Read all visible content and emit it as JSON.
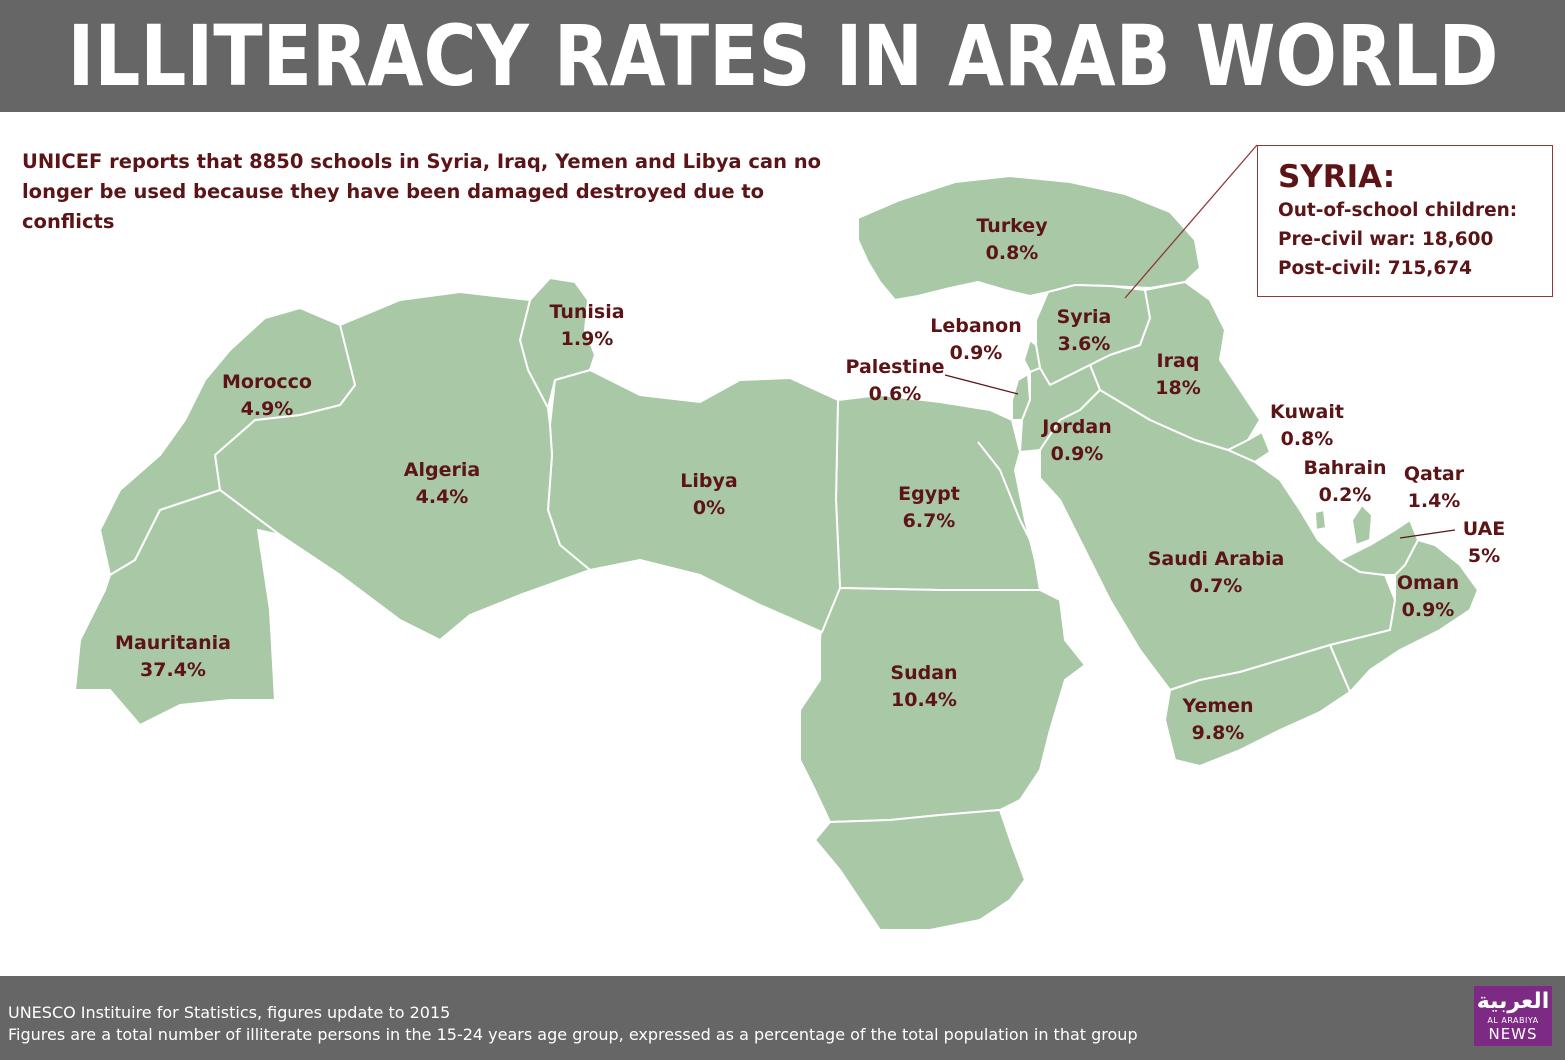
{
  "header": {
    "title": "ILLITERACY RATES IN ARAB WORLD"
  },
  "intro": {
    "text": "UNICEF reports that 8850 schools in Syria, Iraq, Yemen and Libya can no longer be used because they have been damaged destroyed due to conflicts"
  },
  "colors": {
    "land": "#a8c8a6",
    "border": "#ffffff",
    "label": "#5c1416",
    "bar": "#666666",
    "box_border": "#8a3a3a",
    "logo": "#7d2a84"
  },
  "countries": {
    "turkey": {
      "name": "Turkey",
      "rate": "0.8%"
    },
    "tunisia": {
      "name": "Tunisia",
      "rate": "1.9%"
    },
    "lebanon": {
      "name": "Lebanon",
      "rate": "0.9%"
    },
    "syria": {
      "name": "Syria",
      "rate": "3.6%"
    },
    "morocco": {
      "name": "Morocco",
      "rate": "4.9%"
    },
    "palestine": {
      "name": "Palestine",
      "rate": "0.6%"
    },
    "iraq": {
      "name": "Iraq",
      "rate": "18%"
    },
    "kuwait": {
      "name": "Kuwait",
      "rate": "0.8%"
    },
    "jordan": {
      "name": "Jordan",
      "rate": "0.9%"
    },
    "algeria": {
      "name": "Algeria",
      "rate": "4.4%"
    },
    "libya": {
      "name": "Libya",
      "rate": "0%"
    },
    "bahrain": {
      "name": "Bahrain",
      "rate": "0.2%"
    },
    "qatar": {
      "name": "Qatar",
      "rate": "1.4%"
    },
    "egypt": {
      "name": "Egypt",
      "rate": "6.7%"
    },
    "uae": {
      "name": "UAE",
      "rate": "5%"
    },
    "saudi": {
      "name": "Saudi Arabia",
      "rate": "0.7%"
    },
    "oman": {
      "name": "Oman",
      "rate": "0.9%"
    },
    "mauritania": {
      "name": "Mauritania",
      "rate": "37.4%"
    },
    "sudan": {
      "name": "Sudan",
      "rate": "10.4%"
    },
    "yemen": {
      "name": "Yemen",
      "rate": "9.8%"
    }
  },
  "syria_box": {
    "title": "SYRIA:",
    "line1": "Out-of-school children:",
    "line2": "Pre-civil war: 18,600",
    "line3": "Post-civil: 715,674"
  },
  "footer": {
    "source": "UNESCO Instituire for Statistics, figures update to 2015",
    "note": "Figures are a total number of illiterate persons in the 15-24 years age group, expressed as a percentage of the total population in that group"
  },
  "logo": {
    "arabic": "العربية",
    "line1": "AL ARABIYA",
    "line2": "NEWS"
  }
}
